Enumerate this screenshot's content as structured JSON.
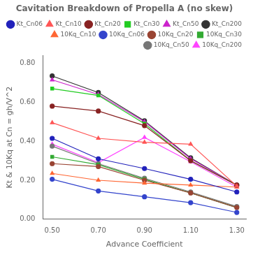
{
  "chart_data": {
    "type": "line",
    "title": "Cavitation Breakdown of Propella A (no skew)",
    "xlabel": "Advance Coefficient",
    "ylabel": "Kt & 10Kq at Cn = gh/V^2",
    "xlim": [
      0.46,
      1.34
    ],
    "ylim": [
      0.0,
      0.84
    ],
    "xticks": [
      {
        "value": 0.5,
        "label": "0.50"
      },
      {
        "value": 0.7,
        "label": "0.70"
      },
      {
        "value": 0.9,
        "label": "0.90"
      },
      {
        "value": 1.1,
        "label": "1.10"
      },
      {
        "value": 1.3,
        "label": "1.30"
      }
    ],
    "yticks": [
      {
        "value": 0,
        "label": "0.00"
      },
      {
        "value": 0.2,
        "label": "0.20"
      },
      {
        "value": 0.4,
        "label": "0.40"
      },
      {
        "value": 0.6,
        "label": "0.60"
      },
      {
        "value": 0.8,
        "label": "0.80"
      }
    ],
    "grid": false,
    "legend": "upper right",
    "x": [
      0.5,
      0.7,
      0.9,
      1.1,
      1.3
    ],
    "series": [
      {
        "name": "Kt_Cn06",
        "color": "#2222bb",
        "marker": "circle",
        "line_style": "solid",
        "values": [
          0.415,
          0.31,
          0.26,
          0.205,
          0.14
        ]
      },
      {
        "name": "Kt_Cn10",
        "color": "#ff5555",
        "marker": "triangle",
        "line_style": "solid",
        "values": [
          0.495,
          0.415,
          0.395,
          0.385,
          0.17
        ]
      },
      {
        "name": "Kt_Cn20",
        "color": "#882222",
        "marker": "circle",
        "line_style": "solid",
        "values": [
          0.58,
          0.555,
          0.48,
          0.3,
          0.175
        ]
      },
      {
        "name": "Kt_Cn30",
        "color": "#22cc22",
        "marker": "square",
        "line_style": "solid",
        "values": [
          0.67,
          0.635,
          0.49,
          0.3,
          0.175
        ]
      },
      {
        "name": "Kt_Cn50",
        "color": "#cc22cc",
        "marker": "triangle",
        "line_style": "solid",
        "values": [
          0.715,
          0.64,
          0.5,
          0.31,
          0.175
        ]
      },
      {
        "name": "Kt_Cn200",
        "color": "#333333",
        "marker": "circle",
        "line_style": "solid",
        "values": [
          0.735,
          0.65,
          0.505,
          0.315,
          0.175
        ]
      },
      {
        "name": "10Kq_Cn10",
        "color": "#ff6633",
        "marker": "triangle",
        "line_style": "solid",
        "values": [
          0.235,
          0.2,
          0.185,
          0.175,
          0.165
        ]
      },
      {
        "name": "10Kq_Cn06",
        "color": "#3344cc",
        "marker": "circle",
        "line_style": "solid",
        "values": [
          0.205,
          0.145,
          0.115,
          0.085,
          0.035
        ]
      },
      {
        "name": "10Kq_Cn20",
        "color": "#994433",
        "marker": "circle",
        "line_style": "solid",
        "values": [
          0.285,
          0.27,
          0.2,
          0.135,
          0.06
        ]
      },
      {
        "name": "10Kq_Cn30",
        "color": "#33aa33",
        "marker": "square",
        "line_style": "solid",
        "values": [
          0.32,
          0.28,
          0.205,
          0.135,
          0.06
        ]
      },
      {
        "name": "10Kq_Cn50",
        "color": "#777777",
        "marker": "circle",
        "line_style": "solid",
        "values": [
          0.375,
          0.285,
          0.21,
          0.14,
          0.065
        ]
      },
      {
        "name": "10Kq_Cn200",
        "color": "#ff44ff",
        "marker": "triangle",
        "line_style": "solid",
        "values": [
          0.385,
          0.29,
          0.42,
          0.295,
          0.165
        ]
      }
    ]
  }
}
